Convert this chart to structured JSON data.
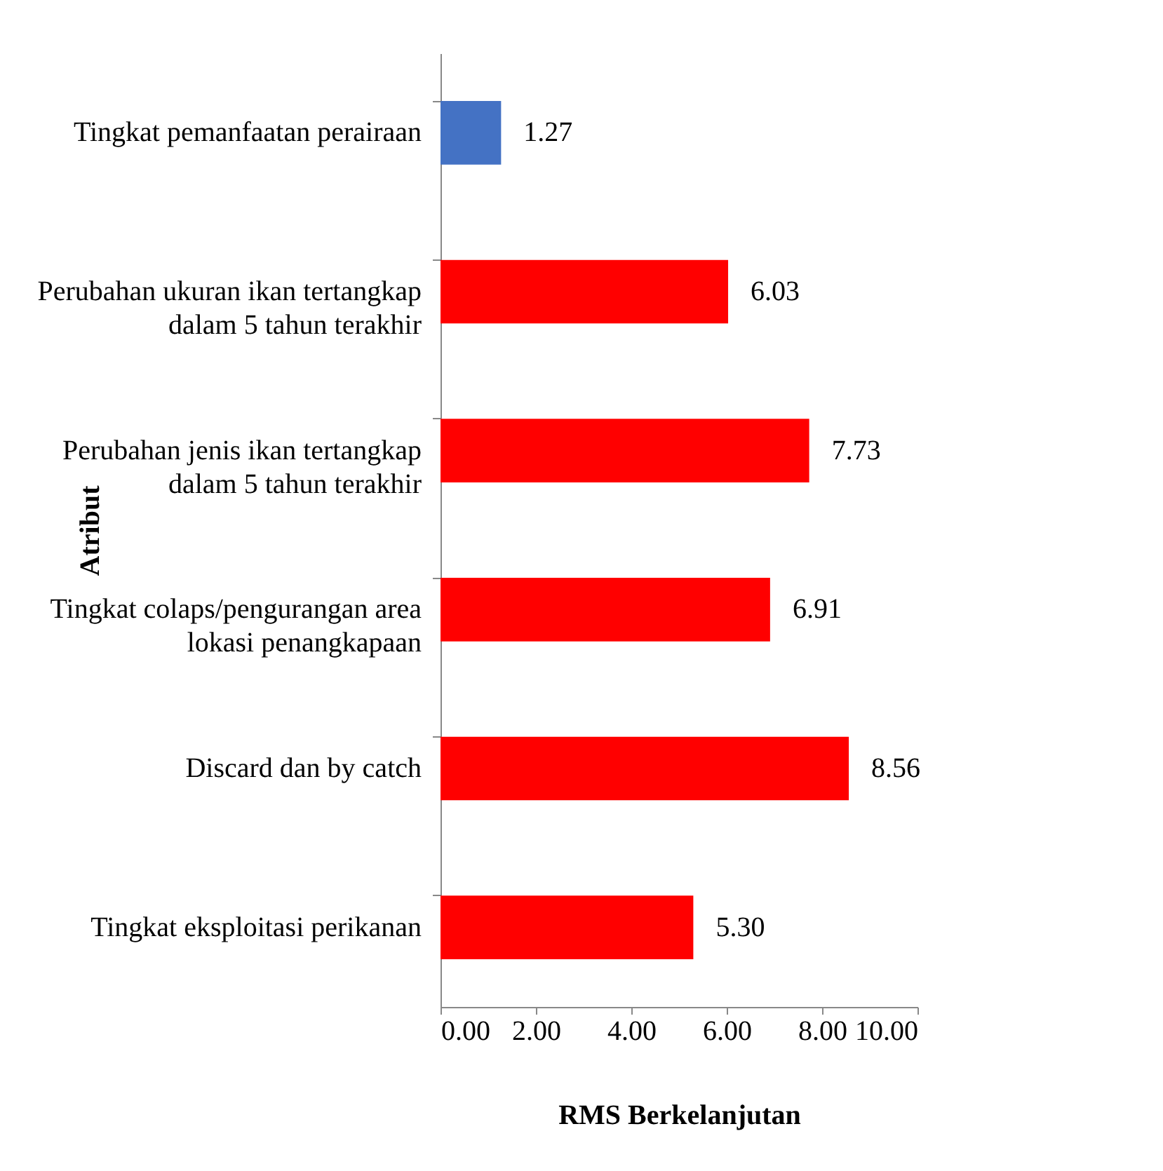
{
  "chart_data": {
    "type": "bar",
    "orientation": "horizontal",
    "xlabel": "RMS Berkelanjutan",
    "ylabel": "Atribut",
    "categories": [
      "Tingkat pemanfaatan perairaan",
      "Perubahan ukuran ikan tertangkap dalam 5 tahun terakhir",
      "Perubahan jenis ikan tertangkap dalam 5 tahun terakhir",
      "Tingkat colaps/pengurangan area lokasi penangkapaan",
      "Discard dan by catch",
      "Tingkat eksploitasi perikanan"
    ],
    "values": [
      1.27,
      6.03,
      7.73,
      6.91,
      8.56,
      5.3
    ],
    "colors": [
      "#4472c4",
      "#ff0000",
      "#ff0000",
      "#ff0000",
      "#ff0000",
      "#ff0000"
    ],
    "value_labels": [
      "1.27",
      "6.03",
      "7.73",
      "6.91",
      "8.56",
      "5.30"
    ],
    "xlim": [
      0,
      10
    ],
    "xticks": [
      {
        "value": 0,
        "label": "0.00"
      },
      {
        "value": 2,
        "label": "2.00"
      },
      {
        "value": 4,
        "label": "4.00"
      },
      {
        "value": 6,
        "label": "6.00"
      },
      {
        "value": 8,
        "label": "8.00"
      },
      {
        "value": 10,
        "label": "10.00"
      }
    ],
    "grid": false
  }
}
